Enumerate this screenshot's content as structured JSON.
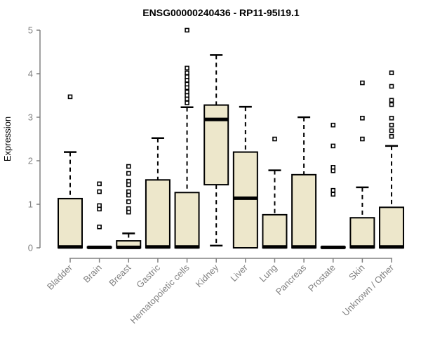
{
  "chart_data": {
    "type": "boxplot",
    "title": "ENSG00000240436 - RP11-95I19.1",
    "ylabel": "Expression",
    "xlabel": "",
    "ylim": [
      0,
      5
    ],
    "yticks": [
      0,
      1,
      2,
      3,
      4,
      5
    ],
    "grid": false,
    "legend": null,
    "categories": [
      "Bladder",
      "Brain",
      "Breast",
      "Gastric",
      "Hematopoietic cells",
      "Kidney",
      "Liver",
      "Lung",
      "Pancreas",
      "Prostate",
      "Skin",
      "Unknown / Other"
    ],
    "boxes": [
      {
        "name": "Bladder",
        "q1": 0,
        "median": 0.02,
        "q3": 1.13,
        "whisker_low": 0,
        "whisker_high": 2.2,
        "outliers": [
          3.47
        ]
      },
      {
        "name": "Brain",
        "q1": 0,
        "median": 0.01,
        "q3": 0.02,
        "whisker_low": 0,
        "whisker_high": 0.02,
        "outliers": [
          1.47,
          1.29,
          0.97,
          0.89,
          0.48
        ]
      },
      {
        "name": "Breast",
        "q1": 0,
        "median": 0.01,
        "q3": 0.16,
        "whisker_low": 0,
        "whisker_high": 0.33,
        "outliers": [
          1.87,
          1.71,
          1.53,
          1.45,
          1.29,
          1.21,
          1.06,
          0.9,
          0.82
        ]
      },
      {
        "name": "Gastric",
        "q1": 0,
        "median": 0.02,
        "q3": 1.56,
        "whisker_low": 0,
        "whisker_high": 2.52,
        "outliers": []
      },
      {
        "name": "Hematopoietic cells",
        "q1": 0,
        "median": 0.02,
        "q3": 1.27,
        "whisker_low": 0,
        "whisker_high": 3.23,
        "outliers": [
          5.0,
          4.13,
          4.02,
          3.93,
          3.85,
          3.76,
          3.68,
          3.58,
          3.5,
          3.42,
          3.33
        ]
      },
      {
        "name": "Kidney",
        "q1": 1.45,
        "median": 2.95,
        "q3": 3.28,
        "whisker_low": 0.05,
        "whisker_high": 4.43,
        "outliers": []
      },
      {
        "name": "Liver",
        "q1": 0,
        "median": 1.14,
        "q3": 2.2,
        "whisker_low": 0,
        "whisker_high": 3.24,
        "outliers": []
      },
      {
        "name": "Lung",
        "q1": 0,
        "median": 0.02,
        "q3": 0.76,
        "whisker_low": 0,
        "whisker_high": 1.78,
        "outliers": [
          2.5
        ]
      },
      {
        "name": "Pancreas",
        "q1": 0,
        "median": 0.02,
        "q3": 1.68,
        "whisker_low": 0,
        "whisker_high": 3.0,
        "outliers": []
      },
      {
        "name": "Prostate",
        "q1": 0,
        "median": 0.01,
        "q3": 0.02,
        "whisker_low": 0,
        "whisker_high": 0.02,
        "outliers": [
          2.82,
          2.34,
          1.85,
          1.77,
          1.32,
          1.23
        ]
      },
      {
        "name": "Skin",
        "q1": 0,
        "median": 0.02,
        "q3": 0.69,
        "whisker_low": 0,
        "whisker_high": 1.39,
        "outliers": [
          3.79,
          2.98,
          2.5
        ]
      },
      {
        "name": "Unknown / Other",
        "q1": 0,
        "median": 0.02,
        "q3": 0.93,
        "whisker_low": 0,
        "whisker_high": 2.34,
        "outliers": [
          4.02,
          3.71,
          3.39,
          3.29,
          2.98,
          2.82,
          2.69,
          2.56
        ]
      }
    ],
    "colors": {
      "box_fill": "#EDE7CB",
      "box_border": "#000000",
      "median": "#000000",
      "whisker": "#000000",
      "outlier": "#000000",
      "axis": "#808080",
      "tick_label": "#828282",
      "title": "#000000",
      "background": "#ffffff"
    }
  }
}
